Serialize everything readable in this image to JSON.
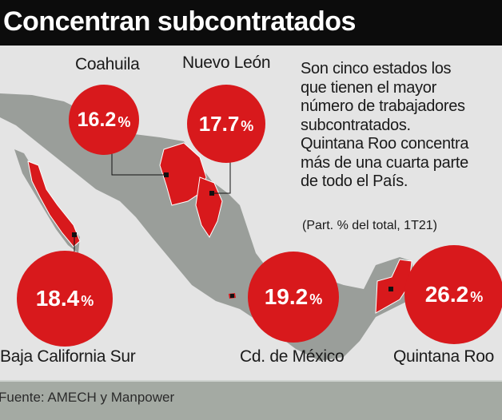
{
  "title": "Concentran subcontratados",
  "description": [
    "Son cinco estados los",
    "que tienen el mayor",
    "número de trabajadores",
    "subcontratados.",
    "Quintana Roo concentra",
    "más de una cuarta parte",
    "de todo el País."
  ],
  "note": "(Part. % del total, 1T21)",
  "states": [
    {
      "name": "Coahuila",
      "value": "16.2",
      "unit": "%"
    },
    {
      "name": "Nuevo León",
      "value": "17.7",
      "unit": "%"
    },
    {
      "name": "Baja California Sur",
      "value": "18.4",
      "unit": "%"
    },
    {
      "name": "Cd. de México",
      "value": "19.2",
      "unit": "%"
    },
    {
      "name": "Quintana Roo",
      "value": "26.2",
      "unit": "%"
    }
  ],
  "source": "Fuente: AMECH y Manpower",
  "colors": {
    "highlight": "#d8191c",
    "map": "#9a9e9a",
    "title_bg": "#0c0c0c",
    "footer_bg": "#a4aaa3"
  }
}
